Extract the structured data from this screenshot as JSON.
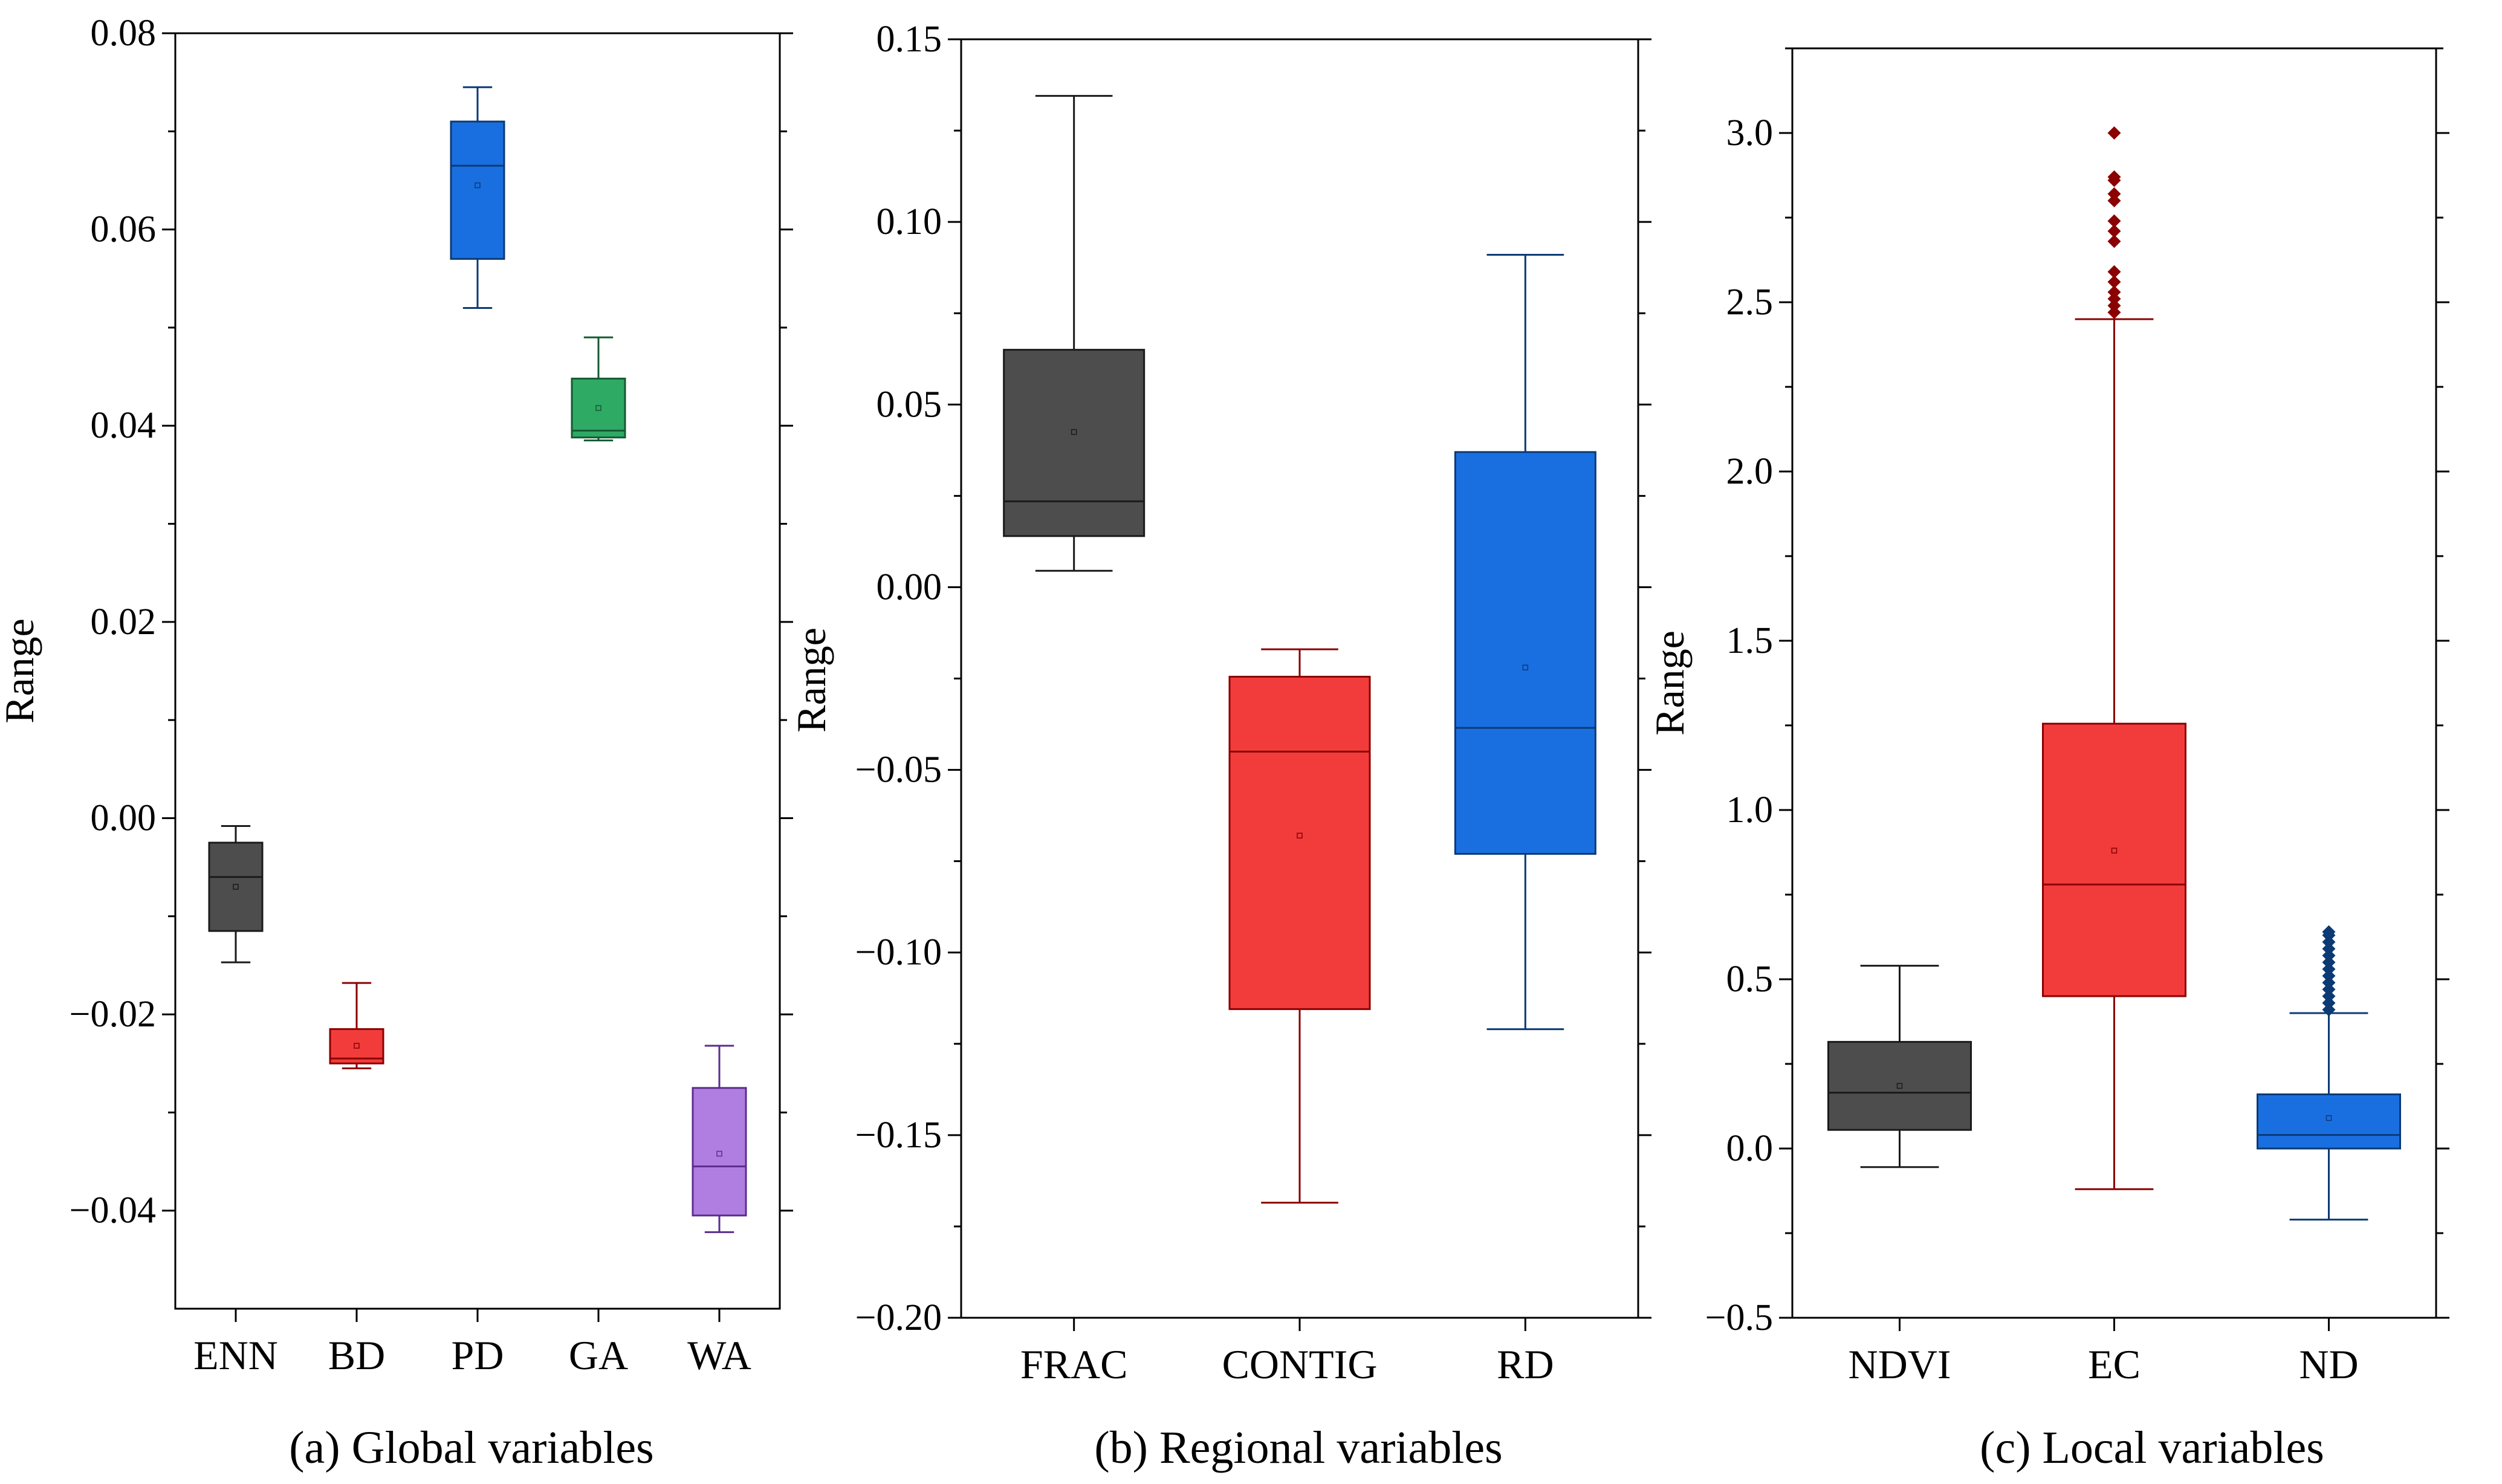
{
  "chart_data": [
    {
      "type": "box",
      "caption": "(a) Global variables",
      "ylabel": "Range",
      "ylim": [
        -0.05,
        0.08
      ],
      "yticks": [
        -0.04,
        -0.02,
        0.0,
        0.02,
        0.04,
        0.06,
        0.08
      ],
      "ytick_labels": [
        "−0.04",
        "−0.02",
        "0.00",
        "0.02",
        "0.04",
        "0.06",
        "0.08"
      ],
      "categories": [
        "ENN",
        "BD",
        "PD",
        "GA",
        "WA"
      ],
      "series": [
        {
          "name": "ENN",
          "whisker_low": -0.0147,
          "q1": -0.0115,
          "median": -0.006,
          "q3": -0.0025,
          "whisker_high": -0.0008,
          "mean": -0.007,
          "fill": "#4d4d4d",
          "stroke": "#1a1a1a",
          "outliers": []
        },
        {
          "name": "BD",
          "whisker_low": -0.0255,
          "q1": -0.025,
          "median": -0.0245,
          "q3": -0.0215,
          "whisker_high": -0.0168,
          "mean": -0.0232,
          "fill": "#f23c3c",
          "stroke": "#8b0000",
          "outliers": []
        },
        {
          "name": "PD",
          "whisker_low": 0.052,
          "q1": 0.057,
          "median": 0.0665,
          "q3": 0.071,
          "whisker_high": 0.0745,
          "mean": 0.0645,
          "fill": "#1a6fe0",
          "stroke": "#0b3a75",
          "outliers": []
        },
        {
          "name": "GA",
          "whisker_low": 0.0385,
          "q1": 0.0388,
          "median": 0.0395,
          "q3": 0.0448,
          "whisker_high": 0.049,
          "mean": 0.0418,
          "fill": "#2eaa65",
          "stroke": "#145a32",
          "outliers": []
        },
        {
          "name": "WA",
          "whisker_low": -0.0422,
          "q1": -0.0405,
          "median": -0.0355,
          "q3": -0.0275,
          "whisker_high": -0.0232,
          "mean": -0.0342,
          "fill": "#b07ee0",
          "stroke": "#5b2d8e",
          "outliers": []
        }
      ]
    },
    {
      "type": "box",
      "caption": "(b) Regional variables",
      "ylabel": "Range",
      "ylim": [
        -0.2,
        0.15
      ],
      "yticks": [
        -0.2,
        -0.15,
        -0.1,
        -0.05,
        0.0,
        0.05,
        0.1,
        0.15
      ],
      "ytick_labels": [
        "−0.20",
        "−0.15",
        "−0.10",
        "−0.05",
        "0.00",
        "0.05",
        "0.10",
        "0.15"
      ],
      "categories": [
        "FRAC",
        "CONTIG",
        "RD"
      ],
      "series": [
        {
          "name": "FRAC",
          "whisker_low": 0.0045,
          "q1": 0.014,
          "median": 0.0235,
          "q3": 0.065,
          "whisker_high": 0.1345,
          "mean": 0.0425,
          "fill": "#4d4d4d",
          "stroke": "#1a1a1a",
          "outliers": []
        },
        {
          "name": "CONTIG",
          "whisker_low": -0.1685,
          "q1": -0.1155,
          "median": -0.045,
          "q3": -0.0245,
          "whisker_high": -0.017,
          "mean": -0.068,
          "fill": "#f23c3c",
          "stroke": "#8b0000",
          "outliers": []
        },
        {
          "name": "RD",
          "whisker_low": -0.121,
          "q1": -0.073,
          "median": -0.0385,
          "q3": 0.037,
          "whisker_high": 0.091,
          "mean": -0.022,
          "fill": "#1a6fe0",
          "stroke": "#0b3a75",
          "outliers": []
        }
      ]
    },
    {
      "type": "box",
      "caption": "(c) Local variables",
      "ylabel": "Range",
      "ylim": [
        -0.5,
        3.25
      ],
      "yticks": [
        -0.5,
        0.0,
        0.5,
        1.0,
        1.5,
        2.0,
        2.5,
        3.0
      ],
      "ytick_labels": [
        "−0.5",
        "0.0",
        "0.5",
        "1.0",
        "1.5",
        "2.0",
        "2.5",
        "3.0"
      ],
      "categories": [
        "NDVI",
        "EC",
        "ND"
      ],
      "series": [
        {
          "name": "NDVI",
          "whisker_low": -0.055,
          "q1": 0.055,
          "median": 0.165,
          "q3": 0.315,
          "whisker_high": 0.54,
          "mean": 0.185,
          "fill": "#4d4d4d",
          "stroke": "#1a1a1a",
          "outliers": []
        },
        {
          "name": "EC",
          "whisker_low": -0.12,
          "q1": 0.45,
          "median": 0.78,
          "q3": 1.255,
          "whisker_high": 2.45,
          "mean": 0.88,
          "fill": "#f23c3c",
          "stroke": "#8b0000",
          "outliers": [
            2.47,
            2.49,
            2.51,
            2.53,
            2.56,
            2.59,
            2.68,
            2.71,
            2.74,
            2.8,
            2.82,
            2.86,
            2.87,
            3.0
          ]
        },
        {
          "name": "ND",
          "whisker_low": -0.21,
          "q1": 0.0,
          "median": 0.04,
          "q3": 0.16,
          "whisker_high": 0.4,
          "mean": 0.09,
          "fill": "#1a6fe0",
          "stroke": "#0b3a75",
          "outliers": [
            0.41,
            0.43,
            0.45,
            0.47,
            0.49,
            0.51,
            0.53,
            0.55,
            0.57,
            0.59,
            0.61,
            0.63,
            0.64
          ]
        }
      ]
    }
  ]
}
